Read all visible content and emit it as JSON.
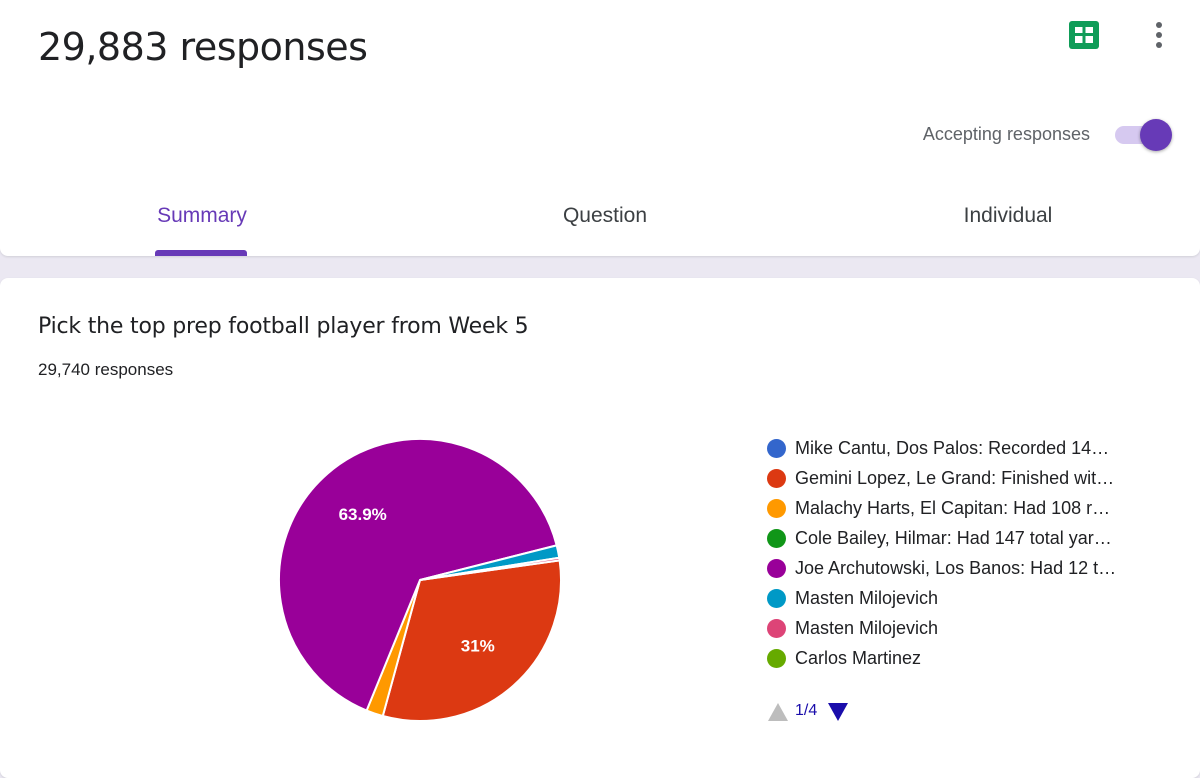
{
  "header": {
    "title": "29,883 responses",
    "accepting_label": "Accepting responses",
    "accepting_enabled": true
  },
  "tabs": [
    {
      "label": "Summary",
      "active": true
    },
    {
      "label": "Question",
      "active": false
    },
    {
      "label": "Individual",
      "active": false
    }
  ],
  "question": {
    "title": "Pick the top prep football player from Week 5",
    "responses_label": "29,740 responses"
  },
  "chart_data": {
    "type": "pie",
    "slices": [
      {
        "label": "Mike Cantu, Dos Palos: Recorded 14…",
        "value": 0.0,
        "color": "#3366cc"
      },
      {
        "label": "Gemini Lopez, Le Grand: Finished wit…",
        "value": 31.0,
        "color": "#dc3912"
      },
      {
        "label": "Malachy Harts, El Capitan: Had 108 r…",
        "value": 1.9,
        "color": "#ff9900"
      },
      {
        "label": "Cole Bailey, Hilmar: Had 147 total yar…",
        "value": 0.0,
        "color": "#109618"
      },
      {
        "label": "Joe Archutowski, Los Banos: Had 12 t…",
        "value": 63.9,
        "color": "#990099"
      },
      {
        "label": "Masten Milojevich",
        "value": 1.4,
        "color": "#0099c6"
      },
      {
        "label": "Masten Milojevich",
        "value": 0.3,
        "color": "#dd4477"
      },
      {
        "label": "Carlos Martinez",
        "value": 0.0,
        "color": "#66aa00"
      }
    ],
    "data_labels": [
      {
        "slice": 4,
        "text": "63.9%"
      },
      {
        "slice": 1,
        "text": "31%"
      }
    ]
  },
  "legend_pager": {
    "text": "1/4",
    "prev_color": "#bdbdbd",
    "next_color": "#1a0dab"
  },
  "icons": {
    "sheets": "google-sheets-icon",
    "more": "more-vert-icon"
  }
}
